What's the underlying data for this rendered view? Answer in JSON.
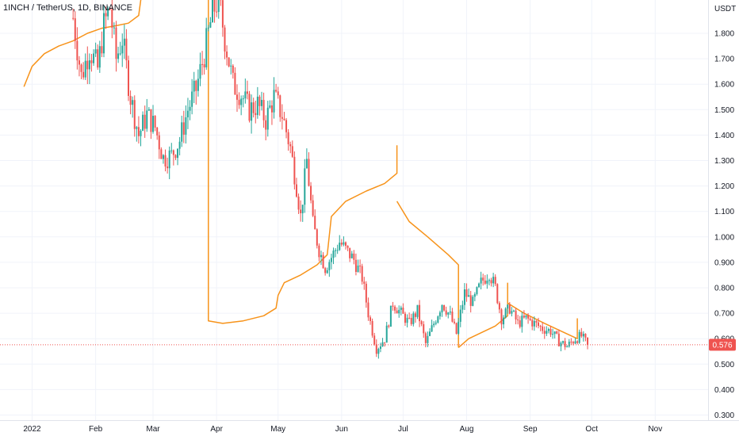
{
  "chart_title": "1INCH / TetherUS, 1D, BINANCE",
  "currency": "USDT",
  "last_price_label": "0.576",
  "colors": {
    "up": "#26a69a",
    "down": "#ef5350",
    "vwap": "#f7931a",
    "grid": "#f0f3fa",
    "axis_text": "#131722",
    "last_price_badge": "#ef5350"
  },
  "chart_data": {
    "type": "candlestick",
    "title": "1INCH / TetherUS, 1D, BINANCE",
    "ylabel": "USDT",
    "ylim": [
      0.27,
      1.99
    ],
    "y_ticks": [
      "1.800",
      "1.700",
      "1.600",
      "1.500",
      "1.400",
      "1.300",
      "1.200",
      "1.100",
      "1.000",
      "0.900",
      "0.800",
      "0.700",
      "0.600",
      "0.500",
      "0.400",
      "0.300"
    ],
    "x_ticks": [
      "2022",
      "Feb",
      "Mar",
      "Apr",
      "May",
      "Jun",
      "Jul",
      "Aug",
      "Sep",
      "Oct",
      "Nov"
    ],
    "last_price": 0.576,
    "grid": true,
    "price_path": [
      {
        "x": "2022-01-21",
        "p": 1.86
      },
      {
        "x": "2022-01-25",
        "p": 1.63
      },
      {
        "x": "2022-01-29",
        "p": 1.74
      },
      {
        "x": "2022-02-02",
        "p": 1.66
      },
      {
        "x": "2022-02-05",
        "p": 1.83
      },
      {
        "x": "2022-02-08",
        "p": 1.9
      },
      {
        "x": "2022-02-11",
        "p": 1.7
      },
      {
        "x": "2022-02-14",
        "p": 1.78
      },
      {
        "x": "2022-02-18",
        "p": 1.55
      },
      {
        "x": "2022-02-22",
        "p": 1.4
      },
      {
        "x": "2022-02-26",
        "p": 1.48
      },
      {
        "x": "2022-03-02",
        "p": 1.43
      },
      {
        "x": "2022-03-06",
        "p": 1.31
      },
      {
        "x": "2022-03-10",
        "p": 1.32
      },
      {
        "x": "2022-03-14",
        "p": 1.38
      },
      {
        "x": "2022-03-18",
        "p": 1.5
      },
      {
        "x": "2022-03-22",
        "p": 1.58
      },
      {
        "x": "2022-03-26",
        "p": 1.72
      },
      {
        "x": "2022-03-30",
        "p": 1.88
      },
      {
        "x": "2022-04-02",
        "p": 1.94
      },
      {
        "x": "2022-04-05",
        "p": 1.78
      },
      {
        "x": "2022-04-09",
        "p": 1.6
      },
      {
        "x": "2022-04-13",
        "p": 1.56
      },
      {
        "x": "2022-04-17",
        "p": 1.5
      },
      {
        "x": "2022-04-21",
        "p": 1.52
      },
      {
        "x": "2022-04-25",
        "p": 1.46
      },
      {
        "x": "2022-04-29",
        "p": 1.55
      },
      {
        "x": "2022-05-03",
        "p": 1.48
      },
      {
        "x": "2022-05-07",
        "p": 1.35
      },
      {
        "x": "2022-05-10",
        "p": 1.2
      },
      {
        "x": "2022-05-12",
        "p": 1.08
      },
      {
        "x": "2022-05-15",
        "p": 1.3
      },
      {
        "x": "2022-05-18",
        "p": 1.05
      },
      {
        "x": "2022-05-21",
        "p": 0.95
      },
      {
        "x": "2022-05-24",
        "p": 0.88
      },
      {
        "x": "2022-05-27",
        "p": 0.92
      },
      {
        "x": "2022-05-31",
        "p": 0.98
      },
      {
        "x": "2022-06-03",
        "p": 0.95
      },
      {
        "x": "2022-06-07",
        "p": 0.91
      },
      {
        "x": "2022-06-11",
        "p": 0.84
      },
      {
        "x": "2022-06-14",
        "p": 0.7
      },
      {
        "x": "2022-06-18",
        "p": 0.56
      },
      {
        "x": "2022-06-22",
        "p": 0.6
      },
      {
        "x": "2022-06-26",
        "p": 0.74
      },
      {
        "x": "2022-06-30",
        "p": 0.7
      },
      {
        "x": "2022-07-04",
        "p": 0.66
      },
      {
        "x": "2022-07-08",
        "p": 0.71
      },
      {
        "x": "2022-07-12",
        "p": 0.58
      },
      {
        "x": "2022-07-16",
        "p": 0.66
      },
      {
        "x": "2022-07-20",
        "p": 0.74
      },
      {
        "x": "2022-07-24",
        "p": 0.69
      },
      {
        "x": "2022-07-27",
        "p": 0.62
      },
      {
        "x": "2022-07-31",
        "p": 0.78
      },
      {
        "x": "2022-08-04",
        "p": 0.74
      },
      {
        "x": "2022-08-08",
        "p": 0.82
      },
      {
        "x": "2022-08-12",
        "p": 0.86
      },
      {
        "x": "2022-08-15",
        "p": 0.8
      },
      {
        "x": "2022-08-18",
        "p": 0.68
      },
      {
        "x": "2022-08-22",
        "p": 0.72
      },
      {
        "x": "2022-08-26",
        "p": 0.66
      },
      {
        "x": "2022-08-30",
        "p": 0.68
      },
      {
        "x": "2022-09-03",
        "p": 0.66
      },
      {
        "x": "2022-09-07",
        "p": 0.64
      },
      {
        "x": "2022-09-11",
        "p": 0.63
      },
      {
        "x": "2022-09-15",
        "p": 0.59
      },
      {
        "x": "2022-09-19",
        "p": 0.57
      },
      {
        "x": "2022-09-23",
        "p": 0.6
      },
      {
        "x": "2022-09-26",
        "p": 0.61
      },
      {
        "x": "2022-09-29",
        "p": 0.576
      }
    ],
    "anchored_vwap": [
      [
        {
          "x": "2021-12-28",
          "y": 1.59
        },
        {
          "x": "2022-01-01",
          "y": 1.67
        },
        {
          "x": "2022-01-07",
          "y": 1.72
        },
        {
          "x": "2022-01-14",
          "y": 1.75
        },
        {
          "x": "2022-01-21",
          "y": 1.77
        },
        {
          "x": "2022-01-28",
          "y": 1.8
        },
        {
          "x": "2022-02-04",
          "y": 1.82
        },
        {
          "x": "2022-02-11",
          "y": 1.83
        },
        {
          "x": "2022-02-17",
          "y": 1.84
        },
        {
          "x": "2022-02-22",
          "y": 1.87
        },
        {
          "x": "2022-02-24",
          "y": 1.99
        }
      ],
      [
        {
          "x": "2022-03-28",
          "y": 1.99
        },
        {
          "x": "2022-03-28",
          "y": 0.67
        },
        {
          "x": "2022-04-04",
          "y": 0.66
        },
        {
          "x": "2022-04-14",
          "y": 0.67
        },
        {
          "x": "2022-04-24",
          "y": 0.69
        },
        {
          "x": "2022-04-30",
          "y": 0.72
        },
        {
          "x": "2022-05-01",
          "y": 0.77
        },
        {
          "x": "2022-05-04",
          "y": 0.82
        },
        {
          "x": "2022-05-12",
          "y": 0.85
        },
        {
          "x": "2022-05-20",
          "y": 0.89
        },
        {
          "x": "2022-05-25",
          "y": 0.93
        },
        {
          "x": "2022-05-27",
          "y": 1.08
        },
        {
          "x": "2022-06-03",
          "y": 1.14
        },
        {
          "x": "2022-06-13",
          "y": 1.18
        },
        {
          "x": "2022-06-22",
          "y": 1.21
        },
        {
          "x": "2022-06-28",
          "y": 1.25
        },
        {
          "x": "2022-06-28",
          "y": 1.36
        }
      ],
      [
        {
          "x": "2022-06-28",
          "y": 1.14
        },
        {
          "x": "2022-07-04",
          "y": 1.06
        },
        {
          "x": "2022-07-13",
          "y": 1.0
        },
        {
          "x": "2022-07-23",
          "y": 0.93
        },
        {
          "x": "2022-07-28",
          "y": 0.89
        },
        {
          "x": "2022-07-28",
          "y": 0.565
        }
      ],
      [
        {
          "x": "2022-07-28",
          "y": 0.565
        },
        {
          "x": "2022-08-02",
          "y": 0.6
        },
        {
          "x": "2022-08-15",
          "y": 0.65
        },
        {
          "x": "2022-08-21",
          "y": 0.69
        },
        {
          "x": "2022-08-21",
          "y": 0.82
        }
      ],
      [
        {
          "x": "2022-08-21",
          "y": 0.74
        },
        {
          "x": "2022-08-29",
          "y": 0.7
        },
        {
          "x": "2022-09-08",
          "y": 0.66
        },
        {
          "x": "2022-09-16",
          "y": 0.63
        },
        {
          "x": "2022-09-24",
          "y": 0.6
        },
        {
          "x": "2022-09-24",
          "y": 0.68
        }
      ]
    ]
  }
}
